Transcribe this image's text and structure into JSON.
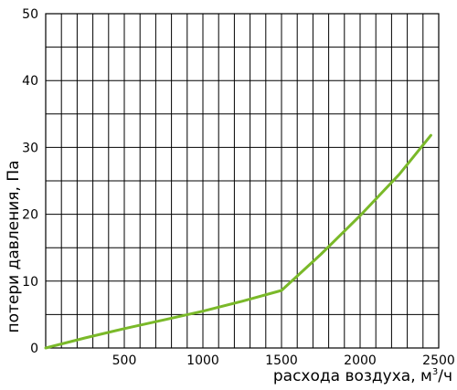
{
  "chart_data": {
    "type": "line",
    "xlabel": "расхода воздуха, м",
    "xlabel_sup": "3",
    "xlabel_tail": "/ч",
    "ylabel": "потери давления, Па",
    "xlim": [
      0,
      2500
    ],
    "ylim": [
      0,
      50
    ],
    "x_ticks": [
      500,
      1000,
      1500,
      2000,
      2500
    ],
    "x_tick_labels": [
      "500",
      "1000",
      "1500",
      "2000",
      "2500"
    ],
    "y_ticks": [
      0,
      10,
      20,
      30,
      40,
      50
    ],
    "y_tick_labels": [
      "0",
      "10",
      "20",
      "30",
      "40",
      "50"
    ],
    "x_grid_step": 100,
    "y_grid_step": 5,
    "grid": true,
    "line_color": "#7ab929",
    "series": [
      {
        "x": [
          0,
          250,
          500,
          750,
          1000,
          1250,
          1500,
          1750,
          2000,
          2250,
          2450
        ],
        "y": [
          0,
          1.5,
          2.9,
          4.2,
          5.5,
          7.0,
          8.6,
          14.0,
          19.8,
          26.0,
          31.8
        ]
      }
    ]
  }
}
